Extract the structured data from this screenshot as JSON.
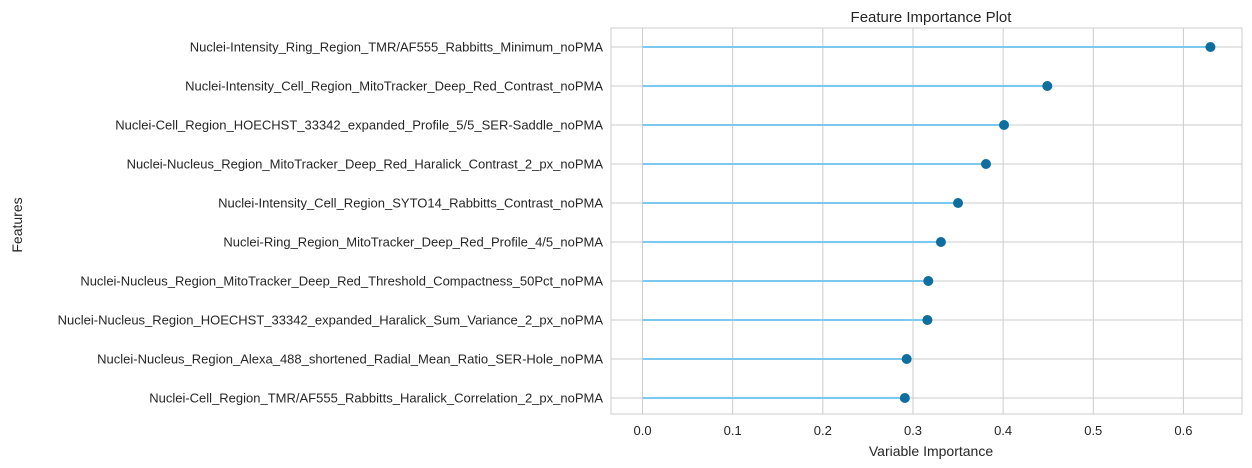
{
  "chart_data": {
    "type": "lollipop",
    "title": "Feature Importance Plot",
    "xlabel": "Variable Importance",
    "ylabel": "Features",
    "xlim": [
      -0.035,
      0.665
    ],
    "xticks": [
      0.0,
      0.1,
      0.2,
      0.3,
      0.4,
      0.5,
      0.6
    ],
    "xtick_labels": [
      "0.0",
      "0.1",
      "0.2",
      "0.3",
      "0.4",
      "0.5",
      "0.6"
    ],
    "grid": true,
    "colors": {
      "stem": "#7cc8ef",
      "marker": "#0e6e9e",
      "grid": "#cccccc",
      "frame": "#cccccc",
      "text": "#262626"
    },
    "features": [
      "Nuclei-Intensity_Ring_Region_TMR/AF555_Rabbitts_Minimum_noPMA",
      "Nuclei-Intensity_Cell_Region_MitoTracker_Deep_Red_Contrast_noPMA",
      "Nuclei-Cell_Region_HOECHST_33342_expanded_Profile_5/5_SER-Saddle_noPMA",
      "Nuclei-Nucleus_Region_MitoTracker_Deep_Red_Haralick_Contrast_2_px_noPMA",
      "Nuclei-Intensity_Cell_Region_SYTO14_Rabbitts_Contrast_noPMA",
      "Nuclei-Ring_Region_MitoTracker_Deep_Red_Profile_4/5_noPMA",
      "Nuclei-Nucleus_Region_MitoTracker_Deep_Red_Threshold_Compactness_50Pct_noPMA",
      "Nuclei-Nucleus_Region_HOECHST_33342_expanded_Haralick_Sum_Variance_2_px_noPMA",
      "Nuclei-Nucleus_Region_Alexa_488_shortened_Radial_Mean_Ratio_SER-Hole_noPMA",
      "Nuclei-Cell_Region_TMR/AF555_Rabbitts_Haralick_Correlation_2_px_noPMA"
    ],
    "values": [
      0.63,
      0.449,
      0.401,
      0.381,
      0.35,
      0.331,
      0.317,
      0.316,
      0.293,
      0.291
    ]
  }
}
